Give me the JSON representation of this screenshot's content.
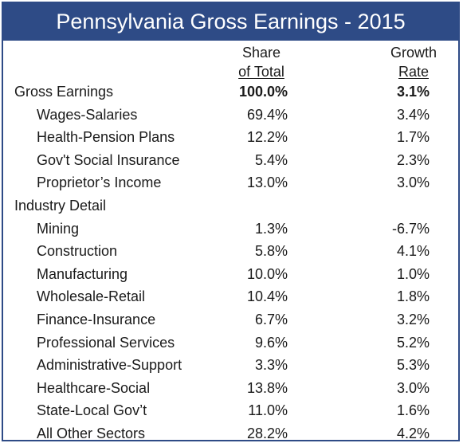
{
  "title": "Pennsylvania Gross Earnings - 2015",
  "headers": {
    "share_line1": "Share",
    "share_line2": "of Total",
    "growth_line1": "Growth",
    "growth_line2": "Rate"
  },
  "rows": [
    {
      "label": "Gross Earnings",
      "share": "100.0%",
      "growth": "3.1%"
    },
    {
      "label": "Wages-Salaries",
      "share": "69.4%",
      "growth": "3.4%"
    },
    {
      "label": "Health-Pension Plans",
      "share": "12.2%",
      "growth": "1.7%"
    },
    {
      "label": "Gov't Social Insurance",
      "share": "5.4%",
      "growth": "2.3%"
    },
    {
      "label": "Proprietor’s Income",
      "share": "13.0%",
      "growth": "3.0%"
    },
    {
      "label": "Industry Detail",
      "share": "",
      "growth": ""
    },
    {
      "label": "Mining",
      "share": "1.3%",
      "growth": "-6.7%"
    },
    {
      "label": "Construction",
      "share": "5.8%",
      "growth": "4.1%"
    },
    {
      "label": "Manufacturing",
      "share": "10.0%",
      "growth": "1.0%"
    },
    {
      "label": "Wholesale-Retail",
      "share": "10.4%",
      "growth": "1.8%"
    },
    {
      "label": "Finance-Insurance",
      "share": "6.7%",
      "growth": "3.2%"
    },
    {
      "label": "Professional Services",
      "share": "9.6%",
      "growth": "5.2%"
    },
    {
      "label": "Administrative-Support",
      "share": "3.3%",
      "growth": "5.3%"
    },
    {
      "label": "Healthcare-Social",
      "share": "13.8%",
      "growth": "3.0%"
    },
    {
      "label": "State-Local Gov’t",
      "share": "11.0%",
      "growth": "1.6%"
    },
    {
      "label": "All Other Sectors",
      "share": "28.2%",
      "growth": "4.2%"
    }
  ]
}
